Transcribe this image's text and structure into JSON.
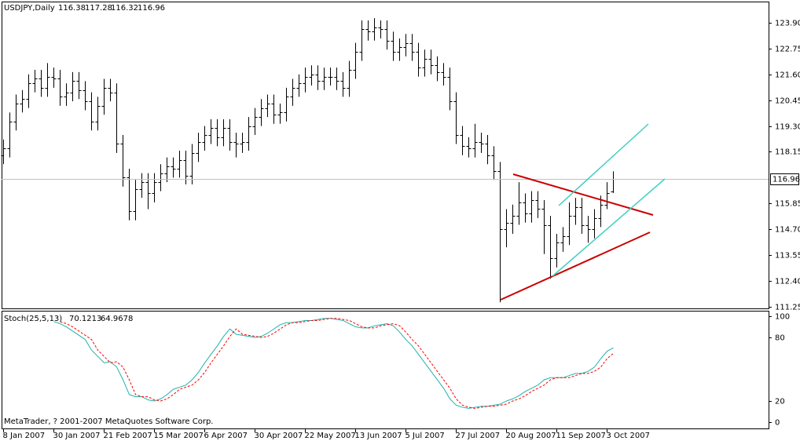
{
  "chart_data": [
    {
      "type": "ohlc",
      "symbol": "USDJPY,Daily",
      "color": "#000000",
      "categories": [
        "8 Jan 2007",
        null,
        null,
        null,
        null,
        null,
        null,
        null,
        "30 Jan 2007",
        null,
        null,
        null,
        null,
        null,
        null,
        null,
        "21 Feb 2007",
        null,
        null,
        null,
        null,
        null,
        null,
        null,
        "15 Mar 2007",
        null,
        null,
        null,
        null,
        null,
        null,
        null,
        "6 Apr 2007",
        null,
        null,
        null,
        null,
        null,
        null,
        null,
        "30 Apr 2007",
        null,
        null,
        null,
        null,
        null,
        null,
        null,
        "22 May 2007",
        null,
        null,
        null,
        null,
        null,
        null,
        null,
        "13 Jun 2007",
        null,
        null,
        null,
        null,
        null,
        null,
        null,
        "5 Jul 2007",
        null,
        null,
        null,
        null,
        null,
        null,
        null,
        "27 Jul 2007",
        null,
        null,
        null,
        null,
        null,
        null,
        null,
        "20 Aug 2007",
        null,
        null,
        null,
        null,
        null,
        null,
        null,
        "11 Sep 2007",
        null,
        null,
        null,
        null,
        null,
        null,
        null,
        "3 Oct 2007",
        null
      ],
      "open": [
        118.0,
        118.3,
        119.5,
        120.3,
        120.5,
        121.2,
        121.4,
        121.0,
        121.5,
        121.4,
        120.6,
        120.8,
        121.3,
        120.9,
        120.4,
        119.5,
        120.2,
        121.0,
        120.8,
        118.5,
        117.0,
        115.5,
        116.5,
        116.8,
        116.3,
        116.8,
        117.2,
        117.5,
        117.4,
        117.8,
        117.1,
        118.1,
        118.6,
        118.9,
        119.2,
        118.8,
        119.2,
        118.6,
        118.5,
        118.6,
        119.3,
        119.7,
        120.1,
        120.3,
        119.8,
        119.9,
        120.6,
        121.0,
        121.2,
        121.5,
        121.6,
        121.3,
        121.5,
        121.5,
        121.3,
        121.0,
        121.8,
        122.6,
        123.6,
        123.5,
        123.7,
        123.6,
        123.1,
        122.6,
        122.8,
        123.0,
        122.6,
        121.9,
        122.3,
        122.0,
        121.7,
        121.5,
        120.4,
        118.9,
        118.4,
        118.3,
        118.6,
        118.5,
        118.0,
        117.3,
        114.7,
        115.0,
        115.3,
        115.9,
        115.4,
        116.0,
        115.6,
        114.9,
        113.4,
        114.1,
        114.4,
        115.3,
        115.7,
        114.9,
        114.7,
        115.2,
        115.8,
        116.38
      ],
      "high": [
        118.7,
        119.9,
        120.7,
        120.9,
        121.6,
        121.8,
        121.8,
        122.1,
        121.9,
        121.8,
        121.2,
        121.7,
        121.7,
        121.3,
        120.8,
        120.6,
        121.4,
        121.4,
        121.2,
        118.9,
        117.4,
        116.9,
        117.2,
        117.2,
        117.2,
        117.6,
        117.9,
        117.9,
        118.2,
        118.2,
        118.5,
        119.0,
        119.3,
        119.6,
        119.6,
        119.6,
        119.6,
        119.0,
        119.0,
        119.7,
        120.1,
        120.5,
        120.7,
        120.7,
        120.3,
        121.0,
        121.4,
        121.6,
        121.9,
        122.0,
        122.0,
        121.9,
        121.9,
        121.9,
        121.7,
        122.2,
        123.0,
        124.0,
        124.0,
        124.1,
        124.0,
        124.0,
        123.5,
        123.2,
        123.4,
        123.4,
        123.0,
        122.7,
        122.7,
        122.4,
        122.1,
        121.9,
        120.8,
        119.3,
        118.8,
        119.4,
        119.0,
        118.9,
        118.4,
        117.7,
        115.6,
        115.8,
        116.8,
        116.3,
        116.4,
        116.4,
        116.0,
        115.3,
        114.5,
        114.8,
        115.9,
        116.1,
        116.1,
        115.3,
        115.6,
        116.2,
        116.8,
        117.28
      ],
      "low": [
        117.6,
        117.9,
        119.1,
        119.9,
        120.1,
        120.8,
        120.6,
        120.6,
        121.0,
        120.2,
        120.2,
        120.4,
        120.5,
        120.0,
        119.1,
        119.1,
        119.8,
        120.4,
        118.1,
        116.6,
        115.1,
        115.1,
        116.1,
        115.6,
        115.9,
        116.4,
        116.8,
        117.0,
        117.0,
        116.7,
        116.7,
        117.7,
        118.2,
        118.5,
        118.4,
        118.4,
        118.2,
        117.9,
        118.1,
        118.2,
        118.9,
        119.3,
        119.7,
        119.4,
        119.4,
        119.5,
        120.2,
        120.6,
        120.8,
        121.1,
        120.9,
        120.9,
        121.1,
        120.9,
        120.6,
        120.6,
        121.4,
        122.2,
        123.1,
        123.1,
        123.2,
        122.7,
        122.2,
        122.2,
        122.4,
        122.2,
        121.5,
        121.5,
        121.6,
        121.3,
        121.1,
        120.0,
        118.5,
        118.0,
        117.9,
        117.9,
        118.1,
        117.6,
        116.9,
        111.45,
        113.9,
        114.5,
        114.9,
        115.0,
        115.0,
        115.2,
        113.6,
        112.5,
        113.0,
        113.7,
        114.0,
        114.9,
        114.5,
        114.1,
        114.3,
        114.8,
        115.6,
        116.32
      ],
      "close": [
        118.3,
        119.5,
        120.3,
        120.5,
        121.2,
        121.4,
        121.0,
        121.5,
        121.4,
        120.6,
        120.8,
        121.3,
        120.9,
        120.4,
        119.5,
        120.2,
        121.0,
        120.8,
        118.5,
        117.0,
        115.5,
        116.5,
        116.8,
        116.3,
        116.8,
        117.2,
        117.5,
        117.4,
        117.8,
        117.1,
        118.1,
        118.6,
        118.9,
        119.2,
        118.8,
        119.2,
        118.6,
        118.5,
        118.6,
        119.3,
        119.7,
        120.1,
        120.3,
        119.8,
        119.9,
        120.6,
        121.0,
        121.2,
        121.5,
        121.6,
        121.3,
        121.5,
        121.5,
        121.3,
        121.0,
        121.8,
        122.6,
        123.6,
        123.5,
        123.7,
        123.6,
        123.1,
        122.6,
        122.8,
        123.0,
        122.6,
        121.9,
        122.3,
        122.0,
        121.7,
        121.5,
        120.4,
        118.9,
        118.4,
        118.3,
        118.6,
        118.5,
        118.0,
        117.3,
        114.7,
        115.0,
        115.3,
        115.9,
        115.4,
        116.0,
        115.6,
        114.9,
        113.4,
        114.1,
        114.4,
        115.3,
        115.7,
        114.9,
        114.7,
        115.2,
        115.8,
        116.3,
        116.96
      ],
      "ylim": [
        111.18,
        124.84
      ],
      "yticks": [
        {
          "value": 123.9,
          "label": "123.90"
        },
        122.75,
        {
          "value": 121.6,
          "label": "121.60"
        },
        120.45,
        {
          "value": 119.3,
          "label": "119.30"
        },
        118.15,
        115.85,
        {
          "value": 114.7,
          "label": "114.70"
        },
        113.55,
        {
          "value": 112.4,
          "label": "112.40"
        },
        111.25
      ],
      "current_price_line": true
    },
    {
      "type": "line",
      "title": "Stoch(25,5,13)",
      "series": [
        {
          "color": "#20b2aa",
          "dashed": false,
          "values": [
            null,
            null,
            null,
            null,
            null,
            null,
            null,
            null,
            95,
            93,
            90,
            86,
            82,
            78,
            68,
            62,
            56,
            57,
            52,
            40,
            26,
            24,
            24,
            21,
            20,
            22,
            26,
            31,
            33,
            35,
            40,
            47,
            56,
            64,
            72,
            81,
            88,
            83,
            82,
            81,
            80,
            81,
            84,
            88,
            92,
            94,
            94,
            95,
            96,
            96,
            97,
            98,
            98,
            97,
            96,
            93,
            90,
            89,
            89,
            91,
            92,
            93,
            91,
            85,
            78,
            72,
            64,
            56,
            48,
            40,
            32,
            22,
            16,
            14,
            13,
            14,
            15,
            15,
            16,
            17,
            20,
            22,
            25,
            29,
            32,
            35,
            40,
            42,
            42,
            42,
            44,
            46,
            46,
            48,
            52,
            60,
            67,
            70.1213
          ]
        },
        {
          "color": "#ff0000",
          "dashed": true,
          "values": [
            null,
            null,
            null,
            null,
            null,
            null,
            null,
            null,
            null,
            95,
            93,
            90,
            86,
            82,
            78,
            68,
            62,
            56,
            57,
            52,
            40,
            26,
            24,
            24,
            21,
            20,
            22,
            26,
            31,
            33,
            35,
            40,
            47,
            56,
            64,
            72,
            81,
            88,
            83,
            82,
            81,
            80,
            81,
            84,
            88,
            92,
            94,
            94,
            95,
            96,
            96,
            97,
            98,
            98,
            97,
            96,
            93,
            90,
            89,
            89,
            91,
            92,
            93,
            91,
            85,
            78,
            72,
            64,
            56,
            48,
            40,
            32,
            22,
            16,
            14,
            13,
            14,
            15,
            15,
            16,
            17,
            20,
            22,
            25,
            29,
            32,
            35,
            40,
            42,
            42,
            42,
            44,
            46,
            46,
            48,
            52,
            60,
            64.9678
          ]
        }
      ],
      "ylim": [
        -5.97,
        105.22
      ],
      "yticks": [
        100,
        80,
        20,
        0
      ]
    }
  ],
  "copyright": "MetaTrader, ? 2001-2007 MetaQuotes Software Corp."
}
